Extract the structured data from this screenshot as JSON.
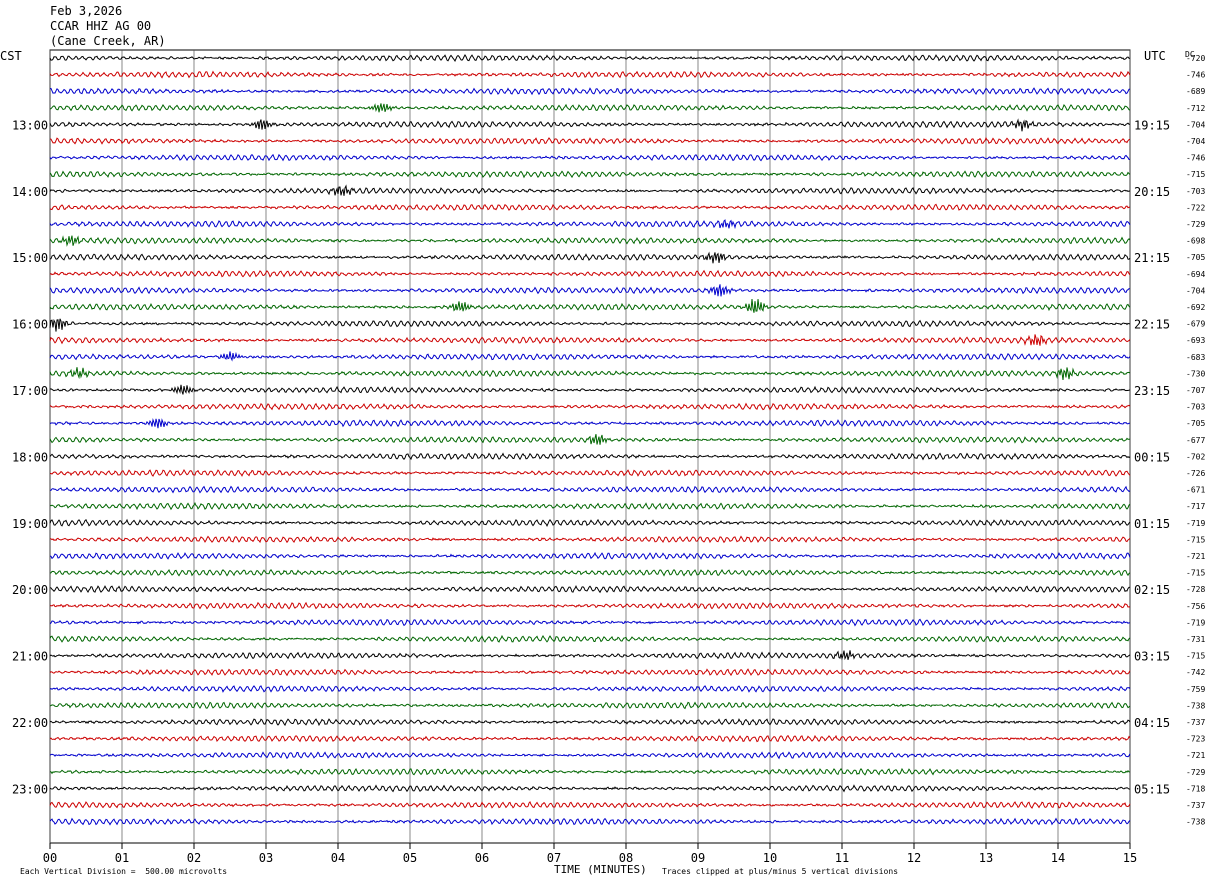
{
  "header": {
    "date": "Feb 3,2026",
    "station": "CCAR HHZ AG 00",
    "location": "(Cane Creek, AR)"
  },
  "left_tz": "CST",
  "right_tz": "UTC",
  "dc_label": "DC",
  "footer": {
    "vertical_division": "Each Vertical Division =  500.00 microvolts",
    "xlabel": "TIME (MINUTES)",
    "clip_note": "Traces clipped at plus/minus 5 vertical divisions"
  },
  "colors": {
    "trace_cycle": [
      "#000000",
      "#cc0000",
      "#0000cc",
      "#006600"
    ],
    "grid": "#000000"
  },
  "chart_data": {
    "type": "line",
    "title": "",
    "xlabel": "TIME (MINUTES)",
    "x_ticks": [
      "00",
      "01",
      "02",
      "03",
      "04",
      "05",
      "06",
      "07",
      "08",
      "09",
      "10",
      "11",
      "12",
      "13",
      "14",
      "15"
    ],
    "xlim": [
      0,
      15
    ],
    "left_hour_labels": [
      "13:00",
      "14:00",
      "15:00",
      "16:00",
      "17:00",
      "18:00",
      "19:00",
      "20:00",
      "21:00",
      "22:00",
      "23:00"
    ],
    "right_hour_labels": [
      "19:15",
      "20:15",
      "21:15",
      "22:15",
      "23:15",
      "00:15",
      "01:15",
      "02:15",
      "03:15",
      "04:15",
      "05:15"
    ],
    "first_label_row": 4,
    "rows_per_hour": 4,
    "dc_offsets": [
      -720,
      -746,
      -689,
      -712,
      -704,
      -704,
      -746,
      -715,
      -703,
      -722,
      -729,
      -698,
      -705,
      -694,
      -704,
      -692,
      -679,
      -693,
      -683,
      -730,
      -707,
      -703,
      -705,
      -677,
      -702,
      -726,
      -671,
      -717,
      -719,
      -715,
      -721,
      -715,
      -728,
      -756,
      -719,
      -731,
      -715,
      -742,
      -759,
      -738,
      -737,
      -723,
      -721,
      -729,
      -718,
      -737,
      -738
    ],
    "events": [
      {
        "row": 3,
        "minute": 4.6,
        "amp": 1.6
      },
      {
        "row": 4,
        "minute": 2.95,
        "amp": 1.8
      },
      {
        "row": 4,
        "minute": 13.5,
        "amp": 1.5
      },
      {
        "row": 8,
        "minute": 4.05,
        "amp": 1.6
      },
      {
        "row": 10,
        "minute": 9.4,
        "amp": 1.4
      },
      {
        "row": 11,
        "minute": 0.3,
        "amp": 1.6
      },
      {
        "row": 12,
        "minute": 9.25,
        "amp": 1.8
      },
      {
        "row": 14,
        "minute": 9.3,
        "amp": 2.0
      },
      {
        "row": 15,
        "minute": 5.7,
        "amp": 1.6
      },
      {
        "row": 15,
        "minute": 9.8,
        "amp": 2.6
      },
      {
        "row": 16,
        "minute": 0.1,
        "amp": 2.2
      },
      {
        "row": 17,
        "minute": 13.7,
        "amp": 1.8
      },
      {
        "row": 18,
        "minute": 2.5,
        "amp": 1.4
      },
      {
        "row": 19,
        "minute": 0.4,
        "amp": 1.3
      },
      {
        "row": 19,
        "minute": 14.1,
        "amp": 1.8
      },
      {
        "row": 20,
        "minute": 1.85,
        "amp": 1.6
      },
      {
        "row": 22,
        "minute": 1.5,
        "amp": 1.7
      },
      {
        "row": 23,
        "minute": 7.6,
        "amp": 1.8
      },
      {
        "row": 36,
        "minute": 11.05,
        "amp": 1.5
      }
    ]
  }
}
